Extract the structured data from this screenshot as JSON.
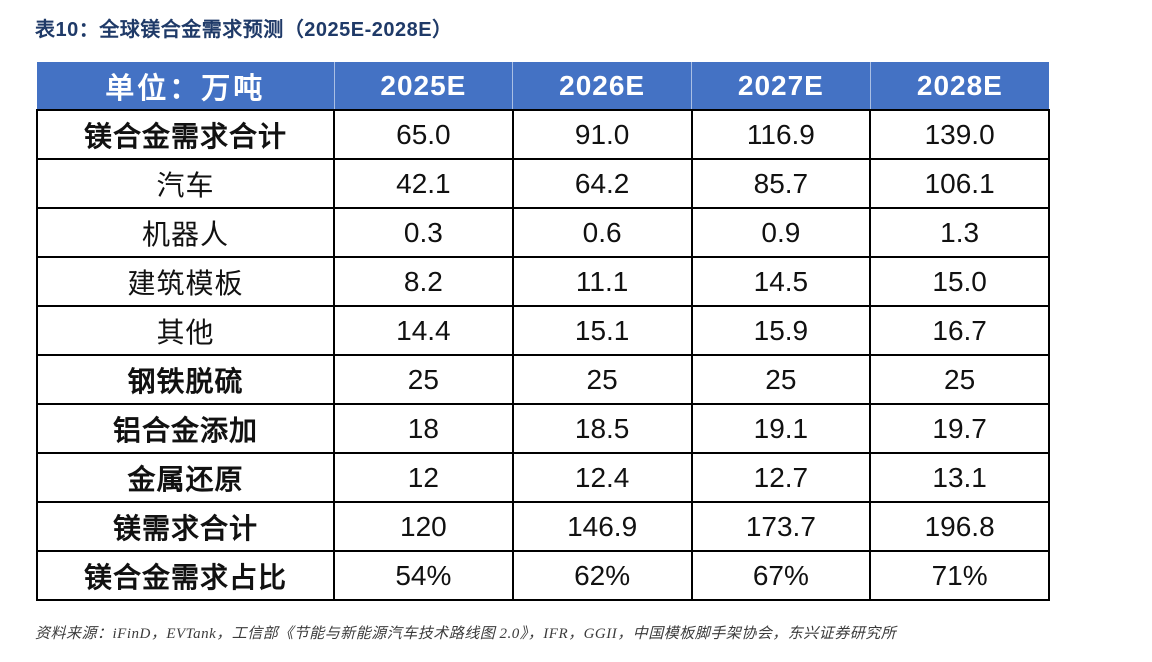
{
  "title": "表10：全球镁合金需求预测（2025E-2028E）",
  "table": {
    "unit_label": "单位：万吨",
    "year_headers": [
      "2025E",
      "2026E",
      "2027E",
      "2028E"
    ],
    "rows": [
      {
        "label": "镁合金需求合计",
        "bold": true,
        "values": [
          "65.0",
          "91.0",
          "116.9",
          "139.0"
        ]
      },
      {
        "label": "汽车",
        "bold": false,
        "values": [
          "42.1",
          "64.2",
          "85.7",
          "106.1"
        ]
      },
      {
        "label": "机器人",
        "bold": false,
        "values": [
          "0.3",
          "0.6",
          "0.9",
          "1.3"
        ]
      },
      {
        "label": "建筑模板",
        "bold": false,
        "values": [
          "8.2",
          "11.1",
          "14.5",
          "15.0"
        ]
      },
      {
        "label": "其他",
        "bold": false,
        "values": [
          "14.4",
          "15.1",
          "15.9",
          "16.7"
        ]
      },
      {
        "label": "钢铁脱硫",
        "bold": true,
        "values": [
          "25",
          "25",
          "25",
          "25"
        ]
      },
      {
        "label": "铝合金添加",
        "bold": true,
        "values": [
          "18",
          "18.5",
          "19.1",
          "19.7"
        ]
      },
      {
        "label": "金属还原",
        "bold": true,
        "values": [
          "12",
          "12.4",
          "12.7",
          "13.1"
        ]
      },
      {
        "label": "镁需求合计",
        "bold": true,
        "values": [
          "120",
          "146.9",
          "173.7",
          "196.8"
        ]
      },
      {
        "label": "镁合金需求占比",
        "bold": true,
        "values": [
          "54%",
          "62%",
          "67%",
          "71%"
        ]
      }
    ]
  },
  "source": "资料来源：iFinD，EVTank，工信部《节能与新能源汽车技术路线图 2.0》，IFR，GGII，中国模板脚手架协会，东兴证券研究所",
  "colors": {
    "header_bg": "#4472C4",
    "header_text": "#FFFFFF",
    "title_text": "#1F3A68",
    "body_text": "#111111",
    "border": "#000000",
    "source_text": "#3B3B3B"
  }
}
